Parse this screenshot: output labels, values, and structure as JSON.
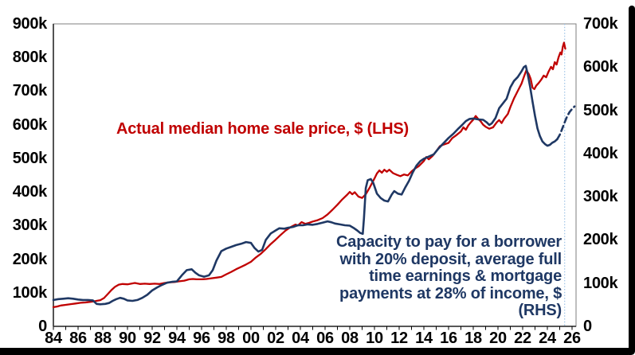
{
  "frame": {
    "background": "#ffffff",
    "border_color": "#000000"
  },
  "annotations": {
    "lhs_label": "Actual median home sale price, $ (LHS)",
    "rhs_label": "Capacity to pay for a borrower\nwith 20% deposit, average full\ntime earnings & mortgage\npayments at 28% of income, $\n(RHS)"
  },
  "colors": {
    "red_series": "#c00000",
    "navy_series": "#1f3864",
    "forecast_divider": "#9dc3e6",
    "axis_line": "#404040",
    "plot_border": "#7f7f7f",
    "tick": "#000000",
    "label_text": "#000000"
  },
  "chart_data": {
    "type": "line",
    "title": "",
    "units": "thousands of dollars",
    "grid": false,
    "legend": "in-plot text annotations",
    "x_axis": {
      "min_year": 1984,
      "max_year": 2026.4,
      "minor_tick_step_years": 1,
      "label_step_years": 2,
      "tick_labels": [
        "84",
        "86",
        "88",
        "90",
        "92",
        "94",
        "96",
        "98",
        "00",
        "02",
        "04",
        "06",
        "08",
        "10",
        "12",
        "14",
        "16",
        "18",
        "20",
        "22",
        "24",
        "26"
      ]
    },
    "lhs_axis": {
      "min": 0,
      "max": 900,
      "tick_labels": [
        "0",
        "100k",
        "200k",
        "300k",
        "400k",
        "500k",
        "600k",
        "700k",
        "800k",
        "900k"
      ]
    },
    "rhs_axis": {
      "min": 0,
      "max": 700,
      "tick_labels": [
        "0",
        "100k",
        "200k",
        "300k",
        "400k",
        "500k",
        "600k",
        "700k"
      ]
    },
    "forecast_divider_year": 2025.4,
    "series": [
      {
        "name": "Actual median home sale price, $ (LHS)",
        "axis": "lhs",
        "color": "#c00000",
        "style": "solid",
        "width": 2.3,
        "points": [
          [
            1984,
            57
          ],
          [
            1984.3,
            59
          ],
          [
            1984.6,
            62
          ],
          [
            1985,
            64
          ],
          [
            1985.4,
            66
          ],
          [
            1985.8,
            68
          ],
          [
            1986.2,
            70
          ],
          [
            1986.6,
            71
          ],
          [
            1987,
            73
          ],
          [
            1987.4,
            75
          ],
          [
            1987.8,
            78
          ],
          [
            1988.1,
            84
          ],
          [
            1988.4,
            96
          ],
          [
            1988.7,
            108
          ],
          [
            1989,
            118
          ],
          [
            1989.3,
            124
          ],
          [
            1989.6,
            126
          ],
          [
            1990,
            125
          ],
          [
            1990.3,
            127
          ],
          [
            1990.6,
            129
          ],
          [
            1991,
            126
          ],
          [
            1991.4,
            127
          ],
          [
            1991.8,
            126
          ],
          [
            1992.2,
            127
          ],
          [
            1992.6,
            126
          ],
          [
            1993,
            129
          ],
          [
            1993.4,
            131
          ],
          [
            1993.8,
            132
          ],
          [
            1994.2,
            134
          ],
          [
            1994.6,
            136
          ],
          [
            1995,
            140
          ],
          [
            1995.3,
            141
          ],
          [
            1995.6,
            140
          ],
          [
            1996,
            140
          ],
          [
            1996.4,
            141
          ],
          [
            1996.8,
            143
          ],
          [
            1997.2,
            145
          ],
          [
            1997.6,
            147
          ],
          [
            1998,
            155
          ],
          [
            1998.4,
            162
          ],
          [
            1998.8,
            170
          ],
          [
            1999.2,
            177
          ],
          [
            1999.6,
            184
          ],
          [
            2000,
            192
          ],
          [
            2000.4,
            205
          ],
          [
            2000.8,
            216
          ],
          [
            2001.2,
            230
          ],
          [
            2001.6,
            245
          ],
          [
            2002,
            258
          ],
          [
            2002.4,
            272
          ],
          [
            2002.8,
            285
          ],
          [
            2003.2,
            295
          ],
          [
            2003.6,
            303
          ],
          [
            2003.8,
            300
          ],
          [
            2004.1,
            310
          ],
          [
            2004.4,
            305
          ],
          [
            2004.7,
            308
          ],
          [
            2005,
            312
          ],
          [
            2005.4,
            316
          ],
          [
            2005.8,
            322
          ],
          [
            2006.2,
            333
          ],
          [
            2006.6,
            347
          ],
          [
            2007,
            362
          ],
          [
            2007.4,
            378
          ],
          [
            2007.8,
            392
          ],
          [
            2008,
            400
          ],
          [
            2008.2,
            393
          ],
          [
            2008.4,
            399
          ],
          [
            2008.7,
            386
          ],
          [
            2009,
            382
          ],
          [
            2009.3,
            393
          ],
          [
            2009.6,
            412
          ],
          [
            2010,
            440
          ],
          [
            2010.2,
            455
          ],
          [
            2010.4,
            464
          ],
          [
            2010.6,
            457
          ],
          [
            2010.8,
            466
          ],
          [
            2011,
            460
          ],
          [
            2011.2,
            466
          ],
          [
            2011.5,
            456
          ],
          [
            2011.8,
            451
          ],
          [
            2012.1,
            447
          ],
          [
            2012.4,
            452
          ],
          [
            2012.7,
            449
          ],
          [
            2013,
            461
          ],
          [
            2013.3,
            470
          ],
          [
            2013.6,
            477
          ],
          [
            2014,
            492
          ],
          [
            2014.2,
            504
          ],
          [
            2014.4,
            497
          ],
          [
            2014.7,
            507
          ],
          [
            2015,
            521
          ],
          [
            2015.3,
            536
          ],
          [
            2015.6,
            541
          ],
          [
            2016,
            546
          ],
          [
            2016.3,
            560
          ],
          [
            2016.6,
            568
          ],
          [
            2017,
            580
          ],
          [
            2017.2,
            592
          ],
          [
            2017.4,
            585
          ],
          [
            2017.6,
            598
          ],
          [
            2017.8,
            607
          ],
          [
            2018,
            615
          ],
          [
            2018.2,
            626
          ],
          [
            2018.4,
            617
          ],
          [
            2018.6,
            610
          ],
          [
            2018.8,
            600
          ],
          [
            2019,
            594
          ],
          [
            2019.3,
            588
          ],
          [
            2019.6,
            592
          ],
          [
            2019.9,
            607
          ],
          [
            2020.1,
            614
          ],
          [
            2020.3,
            605
          ],
          [
            2020.5,
            618
          ],
          [
            2020.8,
            632
          ],
          [
            2021,
            652
          ],
          [
            2021.3,
            678
          ],
          [
            2021.6,
            700
          ],
          [
            2021.9,
            722
          ],
          [
            2022.1,
            742
          ],
          [
            2022.3,
            762
          ],
          [
            2022.5,
            750
          ],
          [
            2022.65,
            736
          ],
          [
            2022.8,
            710
          ],
          [
            2022.95,
            706
          ],
          [
            2023.1,
            716
          ],
          [
            2023.3,
            724
          ],
          [
            2023.5,
            734
          ],
          [
            2023.7,
            746
          ],
          [
            2023.9,
            741
          ],
          [
            2024.1,
            758
          ],
          [
            2024.3,
            772
          ],
          [
            2024.45,
            765
          ],
          [
            2024.6,
            786
          ],
          [
            2024.75,
            779
          ],
          [
            2024.9,
            800
          ],
          [
            2025.05,
            815
          ],
          [
            2025.15,
            809
          ],
          [
            2025.25,
            832
          ],
          [
            2025.35,
            844
          ],
          [
            2025.45,
            826
          ]
        ]
      },
      {
        "name": "Capacity to pay for a borrower with 20% deposit, average full time earnings & mortgage payments at 28% of income, $ (RHS)",
        "axis": "rhs",
        "color": "#1f3864",
        "style": "solid",
        "width": 2.6,
        "points": [
          [
            1984,
            61
          ],
          [
            1984.4,
            63
          ],
          [
            1984.8,
            64
          ],
          [
            1985.2,
            65
          ],
          [
            1985.6,
            64
          ],
          [
            1986,
            62
          ],
          [
            1986.4,
            61
          ],
          [
            1986.8,
            61
          ],
          [
            1987.2,
            60
          ],
          [
            1987.5,
            52
          ],
          [
            1987.8,
            51
          ],
          [
            1988.2,
            52
          ],
          [
            1988.5,
            54
          ],
          [
            1988.8,
            59
          ],
          [
            1989.1,
            63
          ],
          [
            1989.4,
            66
          ],
          [
            1989.7,
            64
          ],
          [
            1990,
            60
          ],
          [
            1990.4,
            59
          ],
          [
            1990.8,
            61
          ],
          [
            1991.2,
            66
          ],
          [
            1991.6,
            73
          ],
          [
            1992,
            83
          ],
          [
            1992.4,
            90
          ],
          [
            1992.8,
            96
          ],
          [
            1993.2,
            101
          ],
          [
            1993.6,
            103
          ],
          [
            1994,
            104
          ],
          [
            1994.4,
            118
          ],
          [
            1994.8,
            130
          ],
          [
            1995.2,
            132
          ],
          [
            1995.5,
            124
          ],
          [
            1995.8,
            118
          ],
          [
            1996.2,
            115
          ],
          [
            1996.6,
            118
          ],
          [
            1996.9,
            130
          ],
          [
            1997.2,
            152
          ],
          [
            1997.6,
            174
          ],
          [
            1998,
            180
          ],
          [
            1998.4,
            184
          ],
          [
            1998.8,
            188
          ],
          [
            1999.2,
            191
          ],
          [
            1999.6,
            195
          ],
          [
            2000,
            193
          ],
          [
            2000.3,
            181
          ],
          [
            2000.6,
            173
          ],
          [
            2000.9,
            177
          ],
          [
            2001.2,
            200
          ],
          [
            2001.6,
            215
          ],
          [
            2002,
            222
          ],
          [
            2002.3,
            227
          ],
          [
            2002.7,
            226
          ],
          [
            2003,
            228
          ],
          [
            2003.4,
            230
          ],
          [
            2003.8,
            234
          ],
          [
            2004.2,
            234
          ],
          [
            2004.6,
            236
          ],
          [
            2005,
            235
          ],
          [
            2005.4,
            237
          ],
          [
            2005.8,
            240
          ],
          [
            2006.2,
            243
          ],
          [
            2006.5,
            241
          ],
          [
            2006.8,
            238
          ],
          [
            2007.2,
            236
          ],
          [
            2007.6,
            234
          ],
          [
            2008,
            233
          ],
          [
            2008.3,
            228
          ],
          [
            2008.6,
            222
          ],
          [
            2008.85,
            216
          ],
          [
            2009.05,
            214
          ],
          [
            2009.15,
            250
          ],
          [
            2009.3,
            320
          ],
          [
            2009.45,
            338
          ],
          [
            2009.7,
            341
          ],
          [
            2009.9,
            332
          ],
          [
            2010.2,
            307
          ],
          [
            2010.5,
            297
          ],
          [
            2010.8,
            291
          ],
          [
            2011.1,
            289
          ],
          [
            2011.4,
            305
          ],
          [
            2011.6,
            313
          ],
          [
            2011.9,
            307
          ],
          [
            2012.2,
            305
          ],
          [
            2012.5,
            322
          ],
          [
            2012.8,
            337
          ],
          [
            2013.1,
            356
          ],
          [
            2013.4,
            372
          ],
          [
            2013.7,
            382
          ],
          [
            2014,
            388
          ],
          [
            2014.4,
            393
          ],
          [
            2014.8,
            398
          ],
          [
            2015.2,
            412
          ],
          [
            2015.6,
            424
          ],
          [
            2016,
            436
          ],
          [
            2016.4,
            446
          ],
          [
            2016.8,
            458
          ],
          [
            2017.1,
            466
          ],
          [
            2017.4,
            475
          ],
          [
            2017.7,
            480
          ],
          [
            2018,
            481
          ],
          [
            2018.4,
            479
          ],
          [
            2018.8,
            478
          ],
          [
            2019.1,
            472
          ],
          [
            2019.3,
            466
          ],
          [
            2019.5,
            470
          ],
          [
            2019.8,
            482
          ],
          [
            2020.1,
            505
          ],
          [
            2020.4,
            516
          ],
          [
            2020.7,
            527
          ],
          [
            2021,
            553
          ],
          [
            2021.3,
            568
          ],
          [
            2021.6,
            577
          ],
          [
            2021.9,
            590
          ],
          [
            2022.1,
            600
          ],
          [
            2022.25,
            603
          ],
          [
            2022.4,
            585
          ],
          [
            2022.6,
            555
          ],
          [
            2022.8,
            520
          ],
          [
            2023,
            487
          ],
          [
            2023.2,
            458
          ],
          [
            2023.4,
            440
          ],
          [
            2023.6,
            428
          ],
          [
            2023.8,
            422
          ],
          [
            2024,
            418
          ],
          [
            2024.2,
            420
          ],
          [
            2024.4,
            425
          ],
          [
            2024.6,
            428
          ],
          [
            2024.8,
            433
          ]
        ]
      },
      {
        "name": "Capacity to pay (forecast, RHS)",
        "axis": "rhs",
        "color": "#1f3864",
        "style": "dashed",
        "width": 2.6,
        "points": [
          [
            2024.8,
            433
          ],
          [
            2025,
            443
          ],
          [
            2025.2,
            457
          ],
          [
            2025.4,
            472
          ],
          [
            2025.6,
            486
          ],
          [
            2025.8,
            496
          ],
          [
            2026,
            503
          ],
          [
            2026.2,
            509
          ]
        ]
      }
    ]
  }
}
